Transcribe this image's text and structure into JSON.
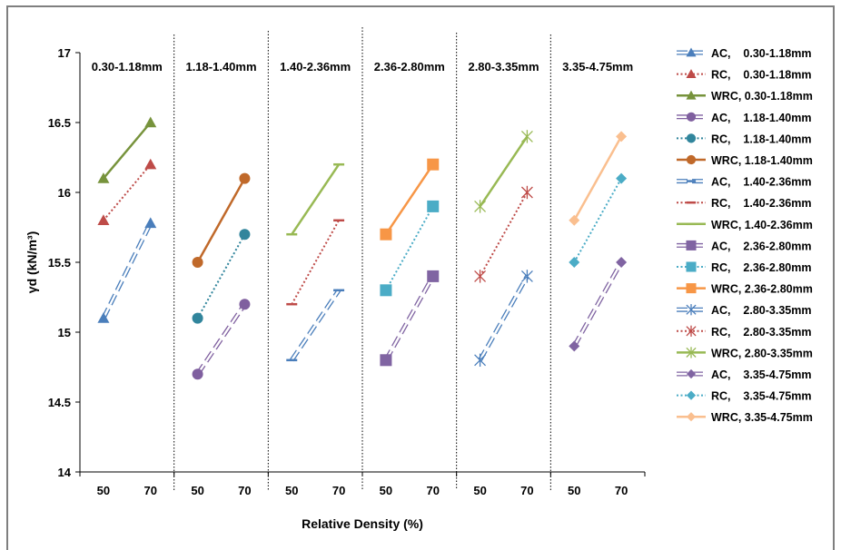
{
  "chart_data": {
    "type": "line",
    "ylabel": "γd (kN/m³)",
    "xlabel": "Relative Density  (%)",
    "ylim": [
      14,
      17
    ],
    "yticks": [
      "14",
      "14.5",
      "15",
      "15.5",
      "16",
      "16.5",
      "17"
    ],
    "x_tick_labels": [
      "50",
      "70"
    ],
    "segments": [
      "0.30-1.18mm",
      "1.18-1.40mm",
      "1.40-2.36mm",
      "2.36-2.80mm",
      "2.80-3.35mm",
      "3.35-4.75mm"
    ],
    "colors": {
      "AC": "#4a7ebb",
      "RC": "#be4b48",
      "WRC": "#98b954"
    },
    "series": [
      {
        "name": "AC,    0.30-1.18mm",
        "segment": 0,
        "kind": "AC",
        "color": "#4a7ebb",
        "marker": "triangle",
        "x": [
          50,
          70
        ],
        "y": [
          15.1,
          15.78
        ]
      },
      {
        "name": "RC,    0.30-1.18mm",
        "segment": 0,
        "kind": "RC",
        "color": "#be4b48",
        "marker": "triangle",
        "x": [
          50,
          70
        ],
        "y": [
          15.8,
          16.2
        ]
      },
      {
        "name": "WRC, 0.30-1.18mm",
        "segment": 0,
        "kind": "WRC",
        "color": "#77933c",
        "marker": "triangle",
        "x": [
          50,
          70
        ],
        "y": [
          16.1,
          16.5
        ]
      },
      {
        "name": "AC,    1.18-1.40mm",
        "segment": 1,
        "kind": "AC",
        "color": "#7f5f9f",
        "marker": "circle",
        "x": [
          50,
          70
        ],
        "y": [
          14.7,
          15.2
        ]
      },
      {
        "name": "RC,    1.18-1.40mm",
        "segment": 1,
        "kind": "RC",
        "color": "#31859c",
        "marker": "circle",
        "x": [
          50,
          70
        ],
        "y": [
          15.1,
          15.7
        ]
      },
      {
        "name": "WRC, 1.18-1.40mm",
        "segment": 1,
        "kind": "WRC",
        "color": "#c0692a",
        "marker": "circle",
        "x": [
          50,
          70
        ],
        "y": [
          15.5,
          16.1
        ]
      },
      {
        "name": "AC,    1.40-2.36mm",
        "segment": 2,
        "kind": "AC",
        "color": "#4a7ebb",
        "marker": "dash",
        "x": [
          50,
          70
        ],
        "y": [
          14.8,
          15.3
        ]
      },
      {
        "name": "RC,    1.40-2.36mm",
        "segment": 2,
        "kind": "RC",
        "color": "#be4b48",
        "marker": "dash",
        "x": [
          50,
          70
        ],
        "y": [
          15.2,
          15.8
        ]
      },
      {
        "name": "WRC, 1.40-2.36mm",
        "segment": 2,
        "kind": "WRC",
        "color": "#98b954",
        "marker": "dash",
        "x": [
          50,
          70
        ],
        "y": [
          15.7,
          16.2
        ]
      },
      {
        "name": "AC,    2.36-2.80mm",
        "segment": 3,
        "kind": "AC",
        "color": "#8064a2",
        "marker": "square",
        "x": [
          50,
          70
        ],
        "y": [
          14.8,
          15.4
        ]
      },
      {
        "name": "RC,    2.36-2.80mm",
        "segment": 3,
        "kind": "RC",
        "color": "#4bacc6",
        "marker": "square",
        "x": [
          50,
          70
        ],
        "y": [
          15.3,
          15.9
        ]
      },
      {
        "name": "WRC, 2.36-2.80mm",
        "segment": 3,
        "kind": "WRC",
        "color": "#f79646",
        "marker": "square",
        "x": [
          50,
          70
        ],
        "y": [
          15.7,
          16.2
        ]
      },
      {
        "name": "AC,    2.80-3.35mm",
        "segment": 4,
        "kind": "AC",
        "color": "#4a7ebb",
        "marker": "asterisk",
        "x": [
          50,
          70
        ],
        "y": [
          14.8,
          15.4
        ]
      },
      {
        "name": "RC,    2.80-3.35mm",
        "segment": 4,
        "kind": "RC",
        "color": "#be4b48",
        "marker": "asterisk",
        "x": [
          50,
          70
        ],
        "y": [
          15.4,
          16.0
        ]
      },
      {
        "name": "WRC, 2.80-3.35mm",
        "segment": 4,
        "kind": "WRC",
        "color": "#98b954",
        "marker": "asterisk",
        "x": [
          50,
          70
        ],
        "y": [
          15.9,
          16.4
        ]
      },
      {
        "name": "AC,    3.35-4.75mm",
        "segment": 5,
        "kind": "AC",
        "color": "#8064a2",
        "marker": "diamond",
        "x": [
          50,
          70
        ],
        "y": [
          14.9,
          15.5
        ]
      },
      {
        "name": "RC,    3.35-4.75mm",
        "segment": 5,
        "kind": "RC",
        "color": "#4bacc6",
        "marker": "diamond",
        "x": [
          50,
          70
        ],
        "y": [
          15.5,
          16.1
        ]
      },
      {
        "name": "WRC, 3.35-4.75mm",
        "segment": 5,
        "kind": "WRC",
        "color": "#fabf8f",
        "marker": "diamond",
        "x": [
          50,
          70
        ],
        "y": [
          15.8,
          16.4
        ]
      }
    ],
    "grid": false,
    "legend_position": "right"
  }
}
